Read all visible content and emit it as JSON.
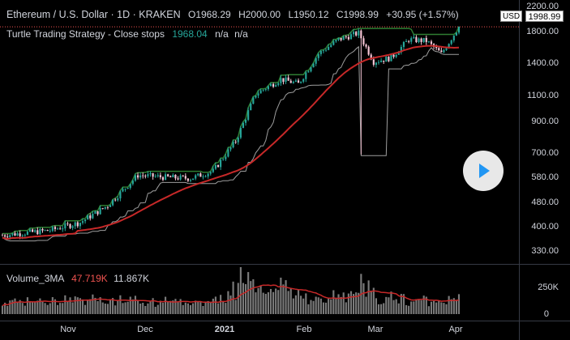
{
  "header": {
    "symbol": "Ethereum / U.S. Dollar · 1D · KRAKEN",
    "open": "O1968.29",
    "high": "H2000.00",
    "low": "L1950.12",
    "close": "C1998.99",
    "change": "+30.95 (+1.57%)"
  },
  "indicator": {
    "name": "Turtle Trading Strategy - Close stops",
    "value": "1968.04",
    "na1": "n/a",
    "na2": "n/a"
  },
  "volume_indicator": {
    "name": "Volume_3MA",
    "value1": "47.719K",
    "value2": "11.867K"
  },
  "price_axis": {
    "current_price": "1998.99",
    "currency_tag": "USD",
    "ticks": [
      "2200.00",
      "1800.00",
      "1400.00",
      "1100.00",
      "900.00",
      "700.00",
      "580.00",
      "480.00",
      "400.00",
      "330.00"
    ]
  },
  "volume_axis": {
    "ticks": [
      "250K",
      "0"
    ]
  },
  "time_axis": {
    "ticks": [
      {
        "label": "Nov",
        "bold": false
      },
      {
        "label": "Dec",
        "bold": false
      },
      {
        "label": "2021",
        "bold": true
      },
      {
        "label": "Feb",
        "bold": false
      },
      {
        "label": "Mar",
        "bold": false
      },
      {
        "label": "Apr",
        "bold": false
      }
    ]
  },
  "colors": {
    "background": "#000000",
    "up_candle": "#26a69a",
    "down_candle": "#f7c6d6",
    "ma_line": "#c62828",
    "stop_line": "#9e9e9e",
    "breakout_line": "#2e7d32",
    "volume_bar": "#7a7a7a",
    "value_green": "#26a69a",
    "value_red": "#ef5350"
  },
  "chart_data": {
    "type": "candlestick",
    "scale": "log",
    "ylim": [
      300,
      2300
    ],
    "x_ticks": [
      "Nov",
      "Dec",
      "2021",
      "Feb",
      "Mar",
      "Apr"
    ],
    "anchors": [
      {
        "date": "2020-10-01",
        "close": 360
      },
      {
        "date": "2020-10-20",
        "close": 375
      },
      {
        "date": "2020-11-01",
        "close": 400
      },
      {
        "date": "2020-11-12",
        "close": 460
      },
      {
        "date": "2020-11-24",
        "close": 590
      },
      {
        "date": "2020-12-05",
        "close": 580
      },
      {
        "date": "2020-12-15",
        "close": 575
      },
      {
        "date": "2020-12-24",
        "close": 610
      },
      {
        "date": "2021-01-02",
        "close": 780
      },
      {
        "date": "2021-01-10",
        "close": 1150
      },
      {
        "date": "2021-01-20",
        "close": 1300
      },
      {
        "date": "2021-01-27",
        "close": 1250
      },
      {
        "date": "2021-02-04",
        "close": 1600
      },
      {
        "date": "2021-02-12",
        "close": 1800
      },
      {
        "date": "2021-02-20",
        "close": 1900
      },
      {
        "date": "2021-02-26",
        "close": 1500
      },
      {
        "date": "2021-03-05",
        "close": 1550
      },
      {
        "date": "2021-03-12",
        "close": 1800
      },
      {
        "date": "2021-03-19",
        "close": 1780
      },
      {
        "date": "2021-03-25",
        "close": 1600
      },
      {
        "date": "2021-04-01",
        "close": 1999
      }
    ],
    "last_close": 1998.99
  }
}
